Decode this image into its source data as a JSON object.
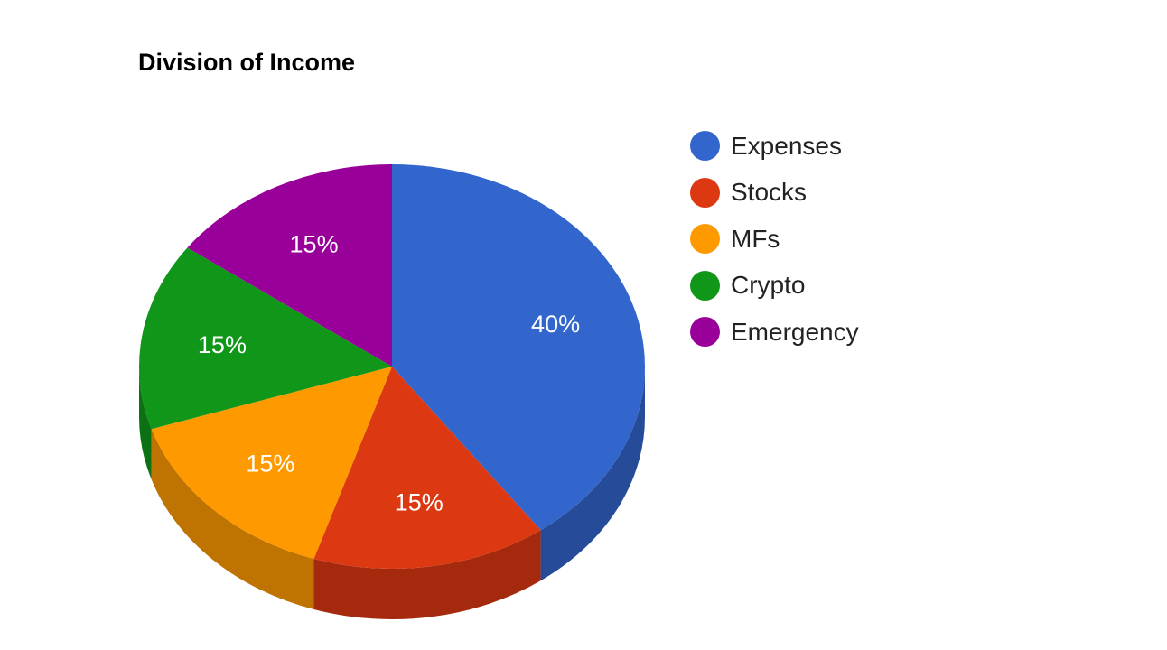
{
  "chart_data": {
    "type": "pie",
    "style": "3d",
    "title": "Division of Income",
    "legend_position": "right",
    "categories": [
      "Expenses",
      "Stocks",
      "MFs",
      "Crypto",
      "Emergency"
    ],
    "values": [
      40,
      15,
      15,
      15,
      15
    ],
    "labels": [
      "40%",
      "15%",
      "15%",
      "15%",
      "15%"
    ],
    "colors": [
      "#3366cc",
      "#dc3912",
      "#ff9900",
      "#109618",
      "#990099"
    ],
    "side_colors": [
      "#264c99",
      "#a52a0d",
      "#bf7300",
      "#0c7112",
      "#730073"
    ]
  }
}
